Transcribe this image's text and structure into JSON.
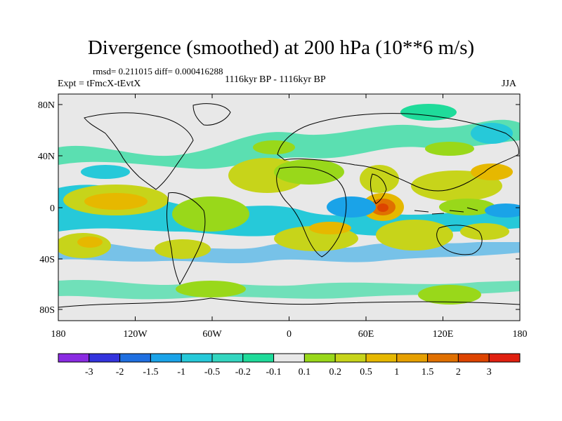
{
  "title": "Divergence (smoothed) at 200 hPa (10**6 m/s)",
  "stats": "rmsd= 0.211015 diff= 0.000416288",
  "experiment": "Expt = tFmcX-tEvtX",
  "period": "1116kyr BP - 1116kyr BP",
  "season": "JJA",
  "map": {
    "lat_ticks": [
      "80N",
      "40N",
      "0",
      "40S",
      "80S"
    ],
    "lon_ticks": [
      "180",
      "120W",
      "60W",
      "0",
      "60E",
      "120E",
      "180"
    ]
  },
  "colorbar": {
    "labels": [
      "-3",
      "-2",
      "-1.5",
      "-1",
      "-0.5",
      "-0.2",
      "-0.1",
      "0.1",
      "0.2",
      "0.5",
      "1",
      "1.5",
      "2",
      "3"
    ],
    "colors": [
      "#8a2be2",
      "#3333dd",
      "#1f6fe0",
      "#1aa3e8",
      "#26c9d9",
      "#33d6c0",
      "#1fdb9a",
      "#e8e8e8",
      "#99d81a",
      "#c7d41a",
      "#e6b800",
      "#e6a000",
      "#e07000",
      "#dd4400",
      "#e02010"
    ]
  }
}
